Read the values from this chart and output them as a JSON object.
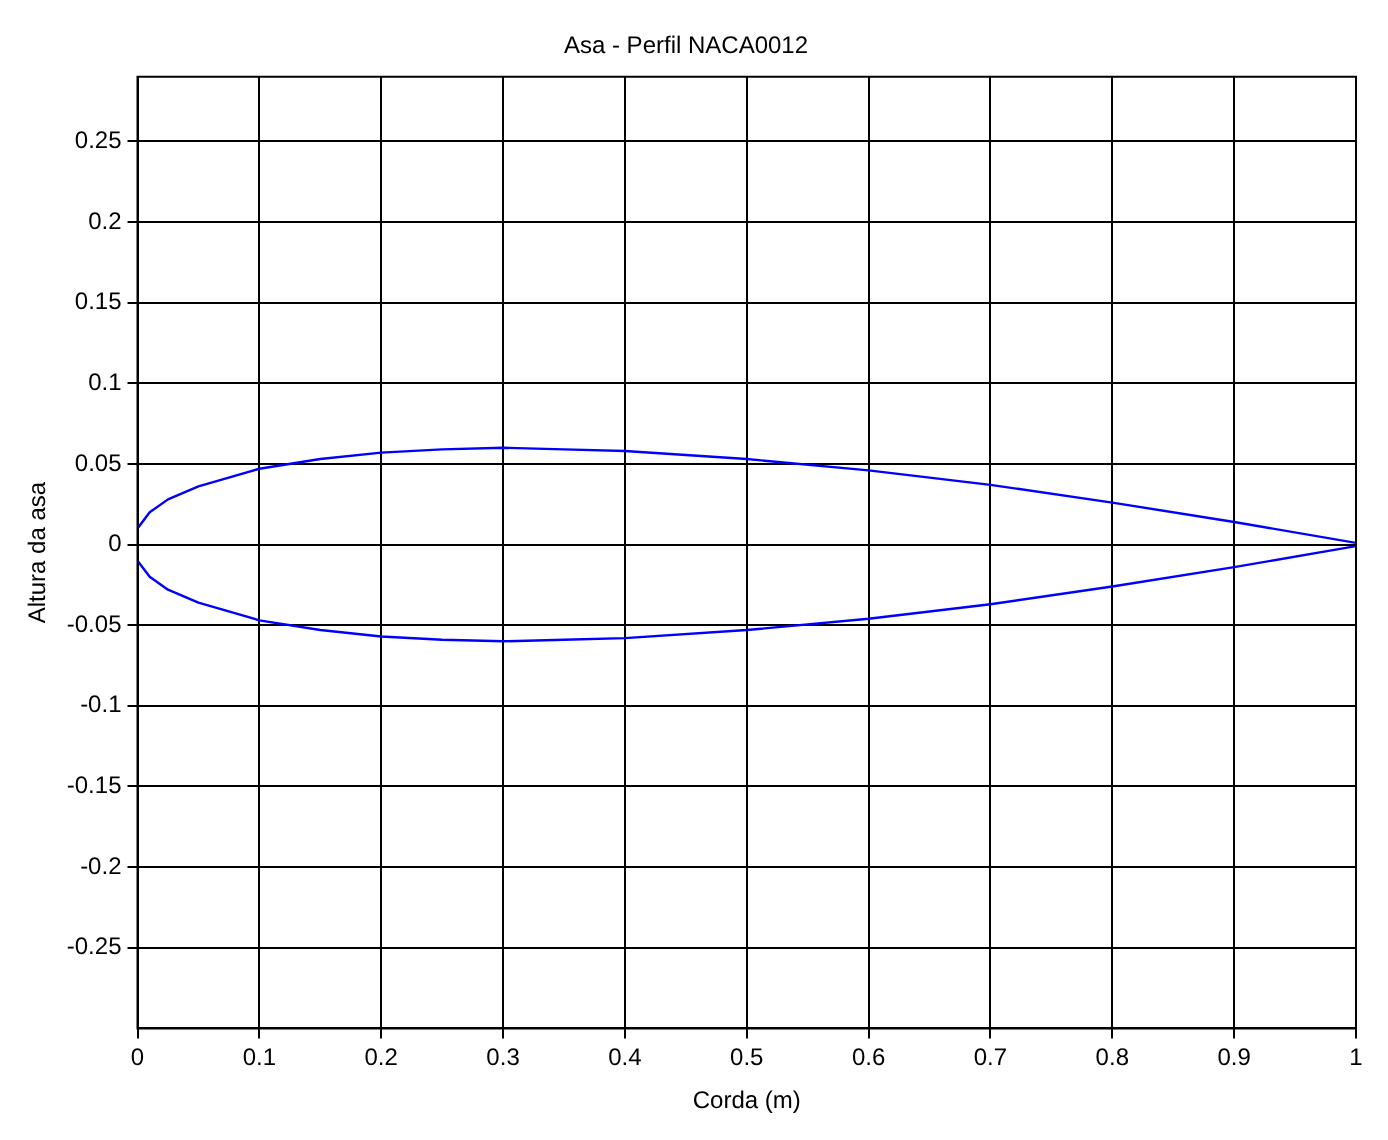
{
  "chart_data": {
    "type": "line",
    "title": "Asa - Perfil NACA0012",
    "xlabel": "Corda (m)",
    "ylabel": "Altura da asa",
    "xlim": [
      0,
      1
    ],
    "xticks": [
      0,
      0.1,
      0.2,
      0.3,
      0.4,
      0.5,
      0.6,
      0.7,
      0.8,
      0.9,
      1
    ],
    "ylim": [
      -0.3,
      0.29
    ],
    "yticks": [
      -0.25,
      -0.2,
      -0.15,
      -0.1,
      -0.05,
      0,
      0.05,
      0.1,
      0.15,
      0.2,
      0.25
    ],
    "grid": true,
    "legend": false,
    "marker": "none",
    "line_style": "solid",
    "series": [
      {
        "color": "#0000ff",
        "x": [
          0,
          0.01,
          0.025,
          0.05,
          0.1,
          0.15,
          0.2,
          0.25,
          0.3,
          0.35,
          0.4,
          0.5,
          0.6,
          0.7,
          0.8,
          0.9,
          1
        ],
        "values": [
          0.01,
          0.02,
          0.028,
          0.036,
          0.047,
          0.053,
          0.057,
          0.059,
          0.06,
          0.059,
          0.058,
          0.053,
          0.046,
          0.037,
          0.026,
          0.014,
          0.001
        ]
      },
      {
        "color": "#0000ff",
        "x": [
          0,
          0.01,
          0.025,
          0.05,
          0.1,
          0.15,
          0.2,
          0.25,
          0.3,
          0.35,
          0.4,
          0.5,
          0.6,
          0.7,
          0.8,
          0.9,
          1
        ],
        "values": [
          -0.01,
          -0.02,
          -0.028,
          -0.036,
          -0.047,
          -0.053,
          -0.057,
          -0.059,
          -0.06,
          -0.059,
          -0.058,
          -0.053,
          -0.046,
          -0.037,
          -0.026,
          -0.014,
          -0.001
        ]
      }
    ]
  }
}
